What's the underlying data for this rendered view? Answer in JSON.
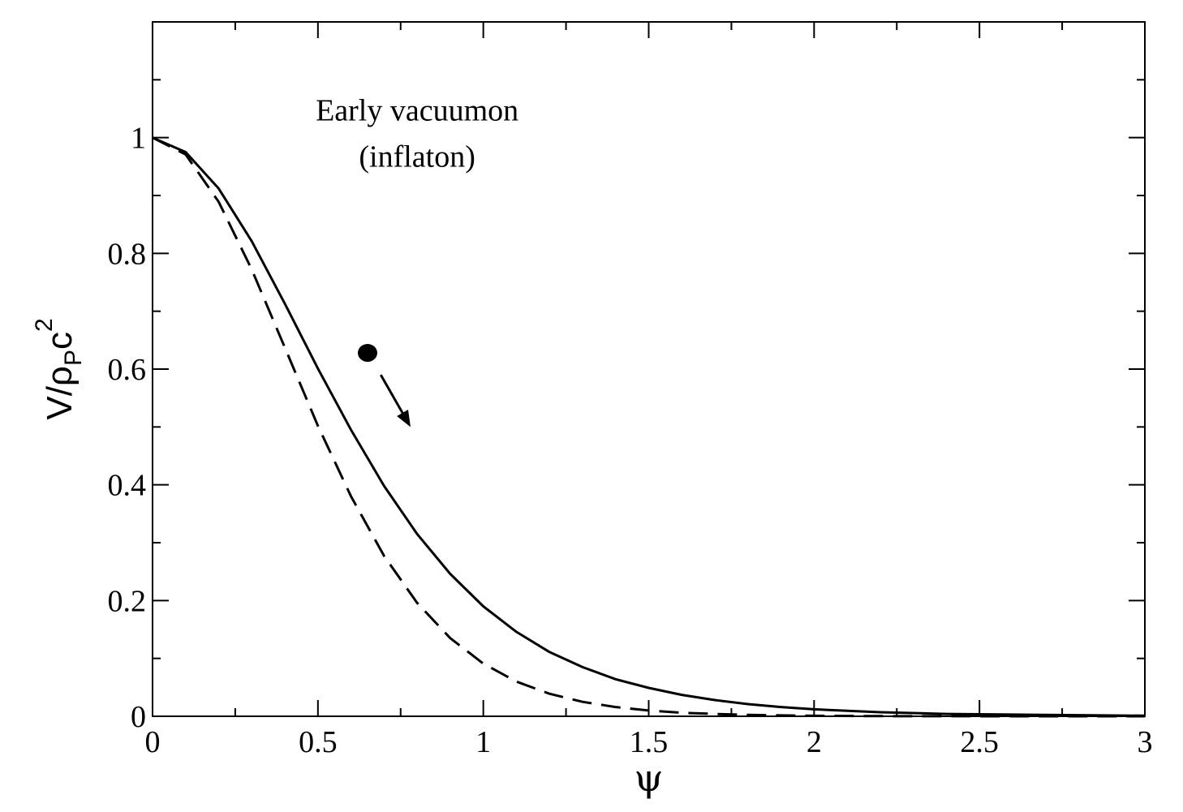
{
  "chart_data": {
    "type": "line",
    "title": "",
    "xlabel": "ψ",
    "ylabel": {
      "main": "V/ρ",
      "subscript": "P",
      "tail": "c",
      "superscript": "2"
    },
    "xlim": [
      0,
      3
    ],
    "ylim": [
      0,
      1.2
    ],
    "xticks": [
      0,
      0.5,
      1,
      1.5,
      2,
      2.5,
      3
    ],
    "xtick_labels": [
      "0",
      "0.5",
      "1",
      "1.5",
      "2",
      "2.5",
      "3"
    ],
    "yticks": [
      0,
      0.2,
      0.4,
      0.6,
      0.8,
      1
    ],
    "ytick_labels": [
      "0",
      "0.2",
      "0.4",
      "0.6",
      "0.8",
      "1"
    ],
    "grid": false,
    "annotation": {
      "line1": "Early vacuumon",
      "line2": "(inflaton)"
    },
    "marker": {
      "x": 0.65,
      "y": 0.628
    },
    "arrow": {
      "from": [
        0.69,
        0.59
      ],
      "to": [
        0.78,
        0.5
      ]
    },
    "series": [
      {
        "style": "solid",
        "x": [
          0,
          0.1,
          0.2,
          0.3,
          0.4,
          0.5,
          0.6,
          0.7,
          0.8,
          0.9,
          1.0,
          1.1,
          1.2,
          1.3,
          1.4,
          1.5,
          1.6,
          1.7,
          1.8,
          1.9,
          2.0,
          2.2,
          2.4,
          2.6,
          2.8,
          3.0
        ],
        "y": [
          1.0,
          0.975,
          0.912,
          0.821,
          0.713,
          0.601,
          0.495,
          0.398,
          0.315,
          0.246,
          0.19,
          0.146,
          0.111,
          0.085,
          0.064,
          0.049,
          0.037,
          0.028,
          0.021,
          0.016,
          0.012,
          0.007,
          0.004,
          0.003,
          0.002,
          0.001
        ]
      },
      {
        "style": "dashed",
        "x": [
          0,
          0.1,
          0.2,
          0.3,
          0.4,
          0.5,
          0.6,
          0.7,
          0.8,
          0.9,
          1.0,
          1.1,
          1.2,
          1.3,
          1.4,
          1.5,
          1.6,
          1.7,
          1.8,
          1.9,
          2.0,
          2.2,
          2.4,
          2.6,
          2.8,
          3.0
        ],
        "y": [
          1.0,
          0.971,
          0.889,
          0.772,
          0.637,
          0.502,
          0.38,
          0.277,
          0.196,
          0.135,
          0.091,
          0.06,
          0.039,
          0.025,
          0.016,
          0.01,
          0.006,
          0.004,
          0.0024,
          0.0015,
          0.0009,
          0.0003,
          0.0001,
          0.0,
          0.0,
          0.0
        ]
      }
    ]
  }
}
